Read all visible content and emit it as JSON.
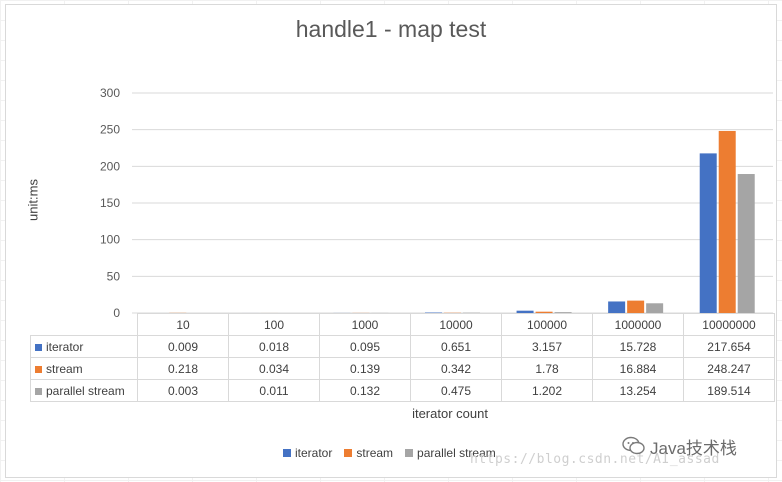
{
  "chart_data": {
    "type": "bar",
    "title": "handle1 - map test",
    "ylabel": "unit:ms",
    "xlabel": "iterator count",
    "ylim": [
      0,
      300
    ],
    "yticks": [
      0,
      50,
      100,
      150,
      200,
      250,
      300
    ],
    "grid": true,
    "legend": "bottom",
    "categories": [
      "10",
      "100",
      "1000",
      "10000",
      "100000",
      "1000000",
      "10000000"
    ],
    "series": [
      {
        "name": "iterator",
        "color": "#4472C4",
        "values": [
          0.009,
          0.018,
          0.095,
          0.651,
          3.157,
          15.728,
          217.654
        ],
        "labels": [
          "0.009",
          "0.018",
          "0.095",
          "0.651",
          "3.157",
          "15.728",
          "217.654"
        ]
      },
      {
        "name": "stream",
        "color": "#ED7D31",
        "values": [
          0.218,
          0.034,
          0.139,
          0.342,
          1.78,
          16.884,
          248.247
        ],
        "labels": [
          "0.218",
          "0.034",
          "0.139",
          "0.342",
          "1.78",
          "16.884",
          "248.247"
        ]
      },
      {
        "name": "parallel stream",
        "color": "#A5A5A5",
        "values": [
          0.003,
          0.011,
          0.132,
          0.475,
          1.202,
          13.254,
          189.514
        ],
        "labels": [
          "0.003",
          "0.011",
          "0.132",
          "0.475",
          "1.202",
          "13.254",
          "189.514"
        ]
      }
    ]
  },
  "watermark": {
    "brand": "Java技术栈",
    "url": "https://blog.csdn.net/AI_assad",
    "logo_icon": "wechat-icon"
  }
}
